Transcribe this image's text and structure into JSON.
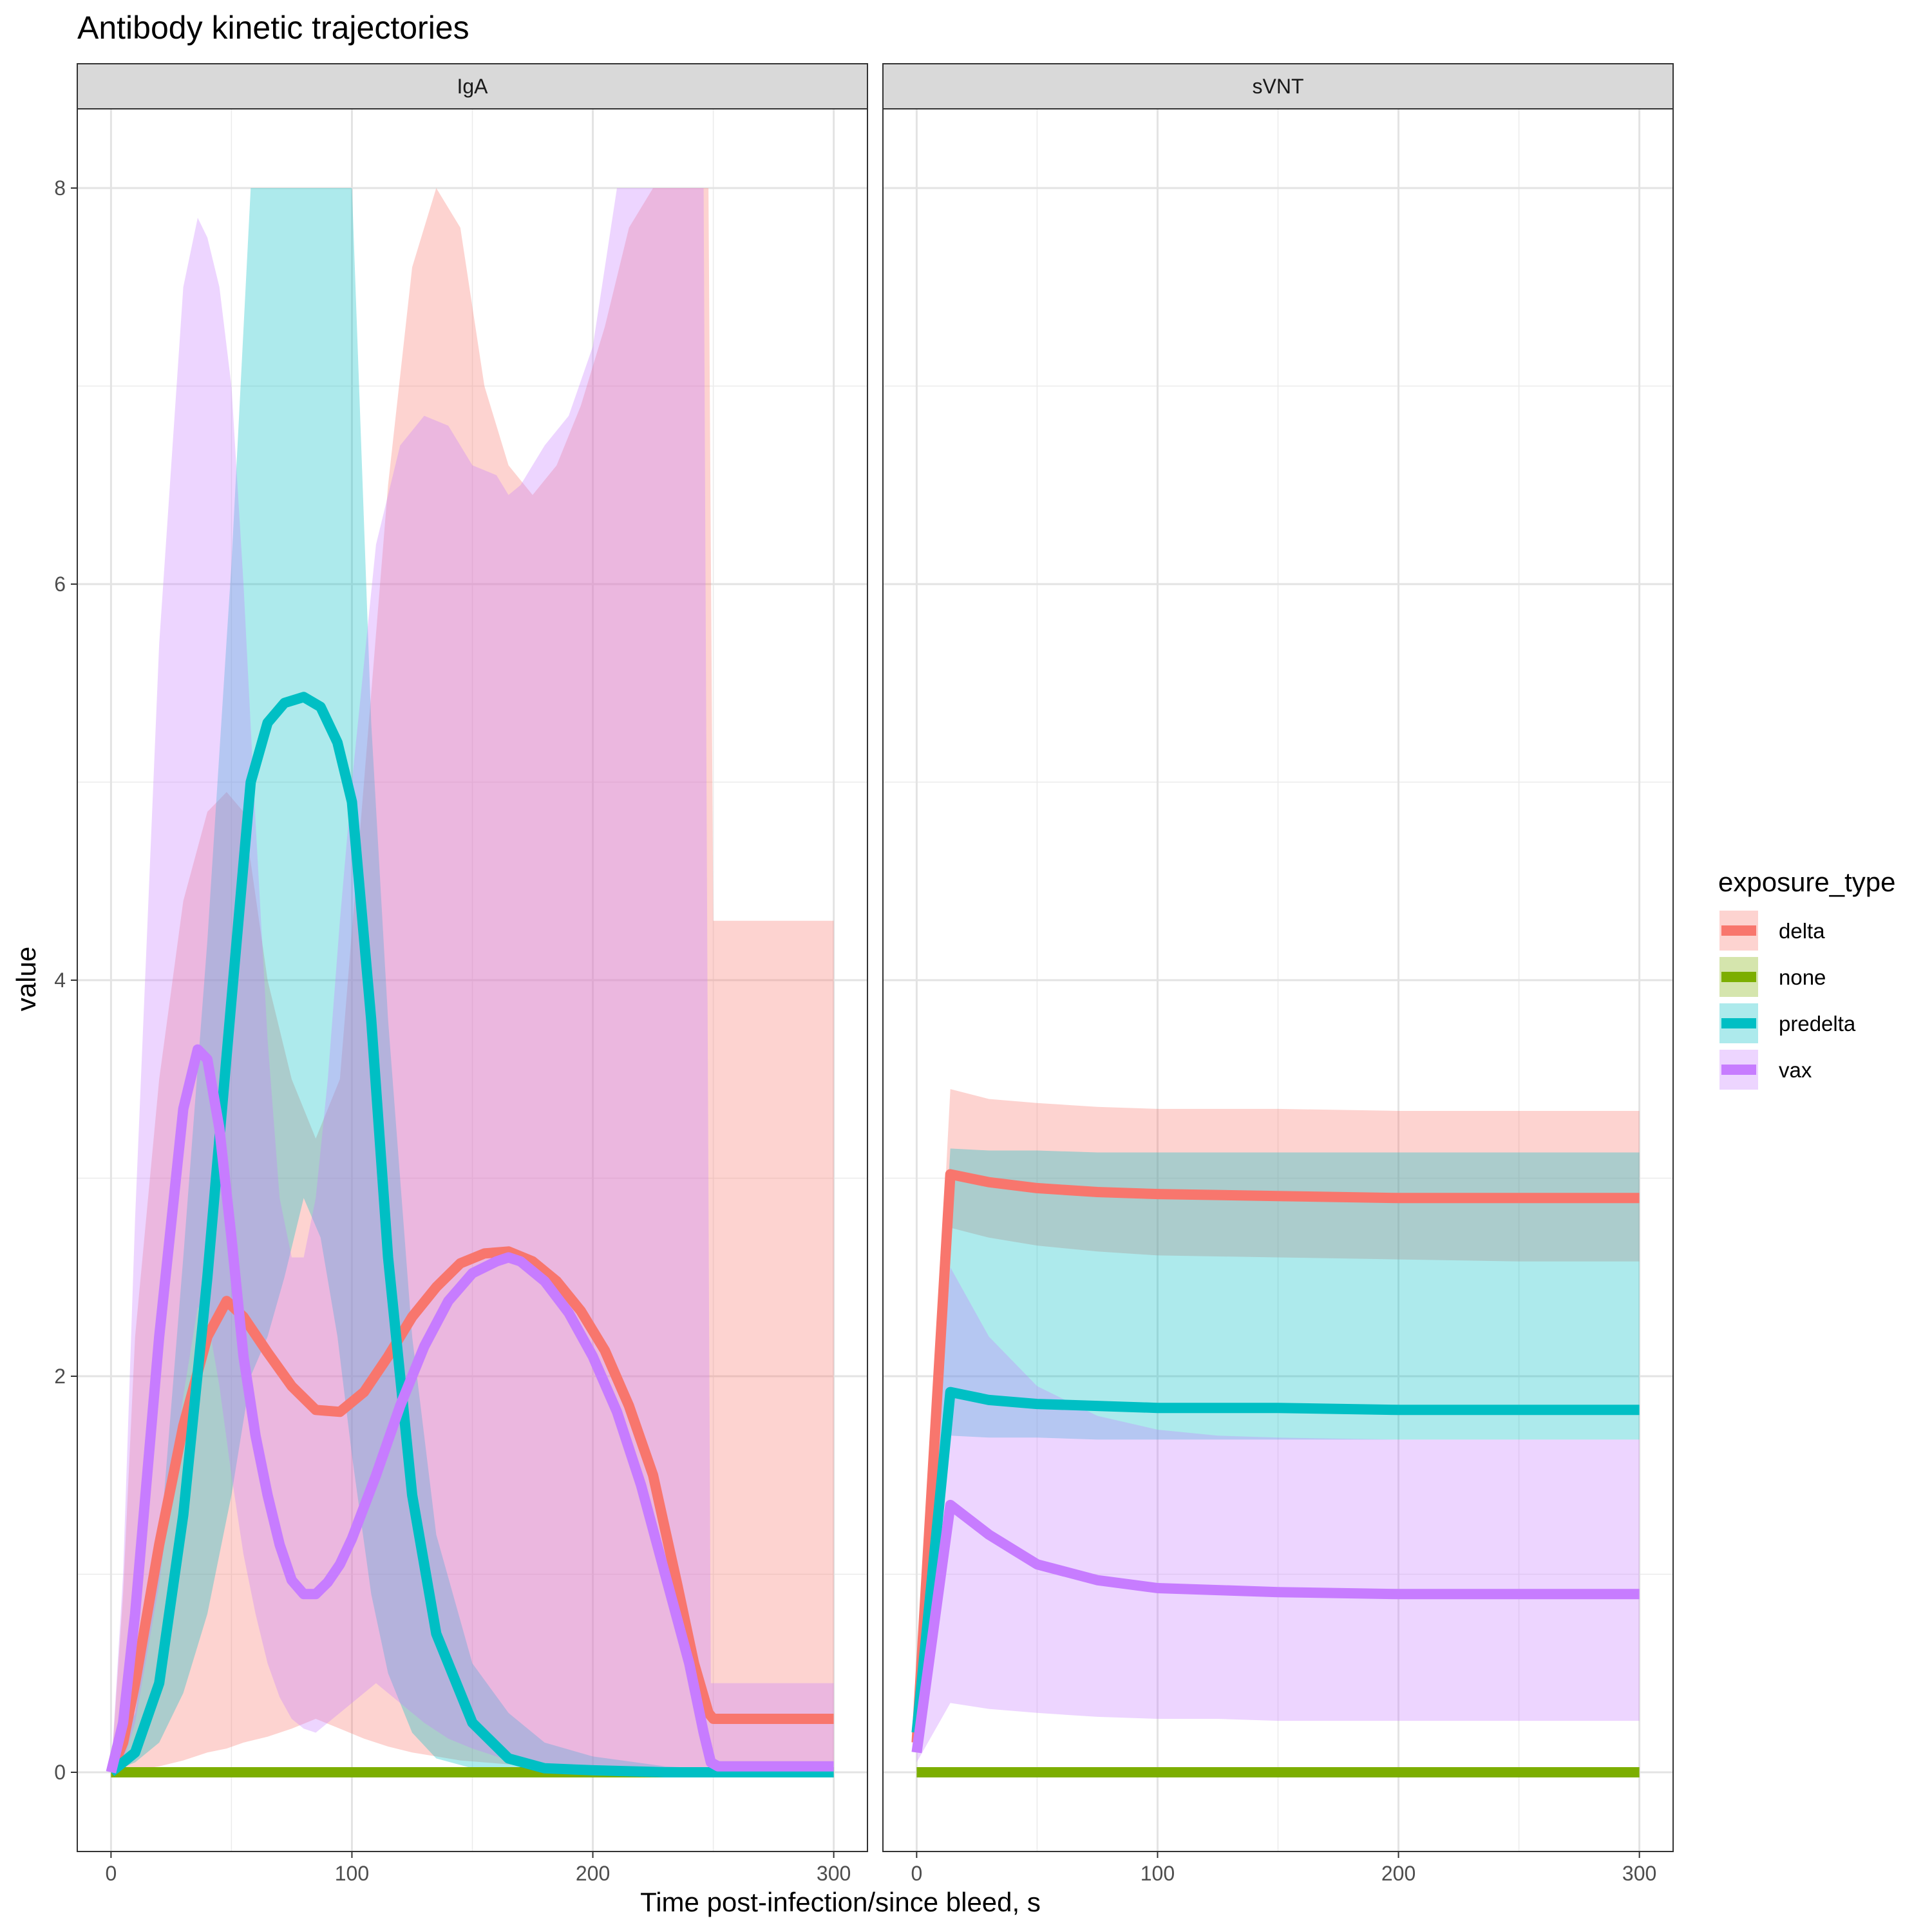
{
  "chart_data": {
    "type": "line",
    "title": "Antibody kinetic trajectories",
    "xlabel": "Time post-infection/since bleed, s",
    "ylabel": "value",
    "xlim": [
      -14,
      314
    ],
    "ylim": [
      -0.4,
      8.4
    ],
    "x_ticks": [
      0,
      100,
      200,
      300
    ],
    "y_ticks": [
      0,
      2,
      4,
      6,
      8
    ],
    "grid": true,
    "legend": {
      "title": "exposure_type",
      "placement": "right",
      "entries": [
        "delta",
        "none",
        "predelta",
        "vax"
      ]
    },
    "colors": {
      "delta": "#F8766D",
      "none": "#7CAE00",
      "predelta": "#00BFC4",
      "vax": "#C77CFF"
    },
    "panels": [
      {
        "strip": "IgA",
        "series": [
          {
            "name": "delta",
            "x": [
              0,
              5,
              10,
              20,
              30,
              40,
              48,
              55,
              65,
              75,
              85,
              95,
              105,
              115,
              125,
              135,
              145,
              155,
              165,
              175,
              185,
              195,
              205,
              215,
              225,
              235,
              242,
              248,
              250,
              300
            ],
            "y": [
              0,
              0.15,
              0.45,
              1.15,
              1.75,
              2.2,
              2.38,
              2.3,
              2.12,
              1.95,
              1.83,
              1.82,
              1.92,
              2.1,
              2.3,
              2.45,
              2.57,
              2.62,
              2.63,
              2.58,
              2.48,
              2.33,
              2.13,
              1.85,
              1.5,
              0.95,
              0.55,
              0.3,
              0.27,
              0.27
            ],
            "lower": [
              0,
              0,
              0.01,
              0.03,
              0.06,
              0.1,
              0.12,
              0.15,
              0.18,
              0.22,
              0.27,
              0.22,
              0.17,
              0.13,
              0.1,
              0.08,
              0.06,
              0.05,
              0.04,
              0.03,
              0.02,
              0.02,
              0.01,
              0.01,
              0.01,
              0.01,
              0,
              0,
              0,
              0
            ],
            "upper": [
              0,
              0.9,
              2.2,
              3.5,
              4.4,
              4.85,
              4.95,
              4.85,
              4.0,
              3.5,
              3.2,
              3.5,
              5.0,
              6.5,
              7.6,
              8.0,
              7.8,
              7.0,
              6.6,
              6.45,
              6.6,
              6.9,
              7.3,
              7.8,
              8.0,
              8.0,
              8.0,
              8.0,
              4.3,
              4.3
            ]
          },
          {
            "name": "none",
            "x": [
              0,
              300
            ],
            "y": [
              0,
              0
            ],
            "lower": [
              0,
              0
            ],
            "upper": [
              0,
              0
            ]
          },
          {
            "name": "predelta",
            "x": [
              0,
              10,
              20,
              30,
              40,
              50,
              58,
              65,
              72,
              80,
              87,
              94,
              100,
              108,
              115,
              125,
              135,
              150,
              165,
              180,
              200,
              230,
              260,
              300
            ],
            "y": [
              0,
              0.1,
              0.45,
              1.3,
              2.5,
              3.9,
              5.0,
              5.3,
              5.4,
              5.43,
              5.38,
              5.2,
              4.9,
              3.8,
              2.6,
              1.4,
              0.7,
              0.25,
              0.07,
              0.02,
              0.01,
              0,
              0,
              0
            ],
            "lower": [
              0,
              0.05,
              0.15,
              0.4,
              0.8,
              1.4,
              2.0,
              2.2,
              2.5,
              2.9,
              2.7,
              2.2,
              1.6,
              0.9,
              0.5,
              0.2,
              0.07,
              0.02,
              0.01,
              0,
              0,
              0,
              0,
              0
            ],
            "upper": [
              0,
              0.3,
              1.1,
              2.6,
              4.2,
              6.1,
              8.0,
              8.0,
              8.0,
              8.0,
              8.0,
              8.0,
              8.0,
              5.3,
              3.8,
              2.2,
              1.2,
              0.55,
              0.3,
              0.15,
              0.08,
              0.03,
              0.01,
              0.01
            ]
          },
          {
            "name": "vax",
            "x": [
              0,
              5,
              10,
              20,
              30,
              36,
              40,
              45,
              50,
              55,
              60,
              65,
              70,
              75,
              80,
              85,
              90,
              95,
              100,
              110,
              120,
              130,
              140,
              150,
              160,
              165,
              170,
              180,
              190,
              200,
              210,
              220,
              230,
              240,
              246,
              249,
              252,
              300
            ],
            "y": [
              0,
              0.25,
              0.8,
              2.2,
              3.35,
              3.65,
              3.6,
              3.25,
              2.7,
              2.1,
              1.7,
              1.4,
              1.15,
              0.97,
              0.9,
              0.9,
              0.96,
              1.05,
              1.18,
              1.5,
              1.85,
              2.15,
              2.38,
              2.52,
              2.58,
              2.6,
              2.58,
              2.48,
              2.32,
              2.1,
              1.82,
              1.45,
              1.0,
              0.55,
              0.2,
              0.05,
              0.03,
              0.03
            ],
            "lower": [
              0,
              0.05,
              0.25,
              0.95,
              1.9,
              2.35,
              2.3,
              1.95,
              1.5,
              1.1,
              0.8,
              0.55,
              0.38,
              0.27,
              0.22,
              0.2,
              0.25,
              0.3,
              0.35,
              0.45,
              0.35,
              0.25,
              0.17,
              0.12,
              0.08,
              0.06,
              0.05,
              0.03,
              0.02,
              0.02,
              0.01,
              0.01,
              0.01,
              0.01,
              0.01,
              0.01,
              0.01,
              0.01
            ],
            "upper": [
              0,
              1.0,
              2.8,
              5.7,
              7.5,
              7.85,
              7.75,
              7.5,
              7.0,
              6.0,
              4.8,
              3.7,
              2.9,
              2.6,
              2.6,
              2.9,
              3.5,
              4.3,
              5.0,
              6.2,
              6.7,
              6.85,
              6.8,
              6.6,
              6.55,
              6.45,
              6.5,
              6.7,
              6.85,
              7.2,
              8.0,
              8.0,
              8.0,
              8.0,
              8.0,
              0.45,
              0.45,
              0.45
            ]
          }
        ]
      },
      {
        "strip": "sVNT",
        "series": [
          {
            "name": "delta",
            "x": [
              0,
              14,
              30,
              50,
              75,
              100,
              150,
              200,
              250,
              300
            ],
            "y": [
              0.15,
              3.02,
              2.98,
              2.95,
              2.93,
              2.92,
              2.91,
              2.9,
              2.9,
              2.9
            ],
            "lower": [
              0.1,
              2.75,
              2.7,
              2.66,
              2.63,
              2.61,
              2.6,
              2.59,
              2.58,
              2.58
            ],
            "upper": [
              0.2,
              3.45,
              3.4,
              3.38,
              3.36,
              3.35,
              3.35,
              3.34,
              3.34,
              3.34
            ]
          },
          {
            "name": "none",
            "x": [
              0,
              300
            ],
            "y": [
              0,
              0
            ],
            "lower": [
              0,
              0
            ],
            "upper": [
              0,
              0
            ]
          },
          {
            "name": "predelta",
            "x": [
              0,
              14,
              30,
              50,
              75,
              100,
              150,
              200,
              250,
              300
            ],
            "y": [
              0.2,
              1.92,
              1.88,
              1.86,
              1.85,
              1.84,
              1.84,
              1.83,
              1.83,
              1.83
            ],
            "lower": [
              0.15,
              1.7,
              1.69,
              1.69,
              1.68,
              1.68,
              1.68,
              1.68,
              1.68,
              1.68
            ],
            "upper": [
              0.25,
              3.15,
              3.14,
              3.14,
              3.13,
              3.13,
              3.13,
              3.13,
              3.13,
              3.13
            ]
          },
          {
            "name": "vax",
            "x": [
              0,
              14,
              30,
              50,
              75,
              100,
              125,
              150,
              200,
              250,
              300
            ],
            "y": [
              0.1,
              1.35,
              1.2,
              1.05,
              0.97,
              0.93,
              0.92,
              0.91,
              0.9,
              0.9,
              0.9
            ],
            "lower": [
              0.05,
              0.35,
              0.32,
              0.3,
              0.28,
              0.27,
              0.27,
              0.26,
              0.26,
              0.26,
              0.26
            ],
            "upper": [
              0.15,
              2.55,
              2.2,
              1.95,
              1.8,
              1.73,
              1.7,
              1.69,
              1.68,
              1.68,
              1.68
            ]
          }
        ]
      }
    ]
  }
}
